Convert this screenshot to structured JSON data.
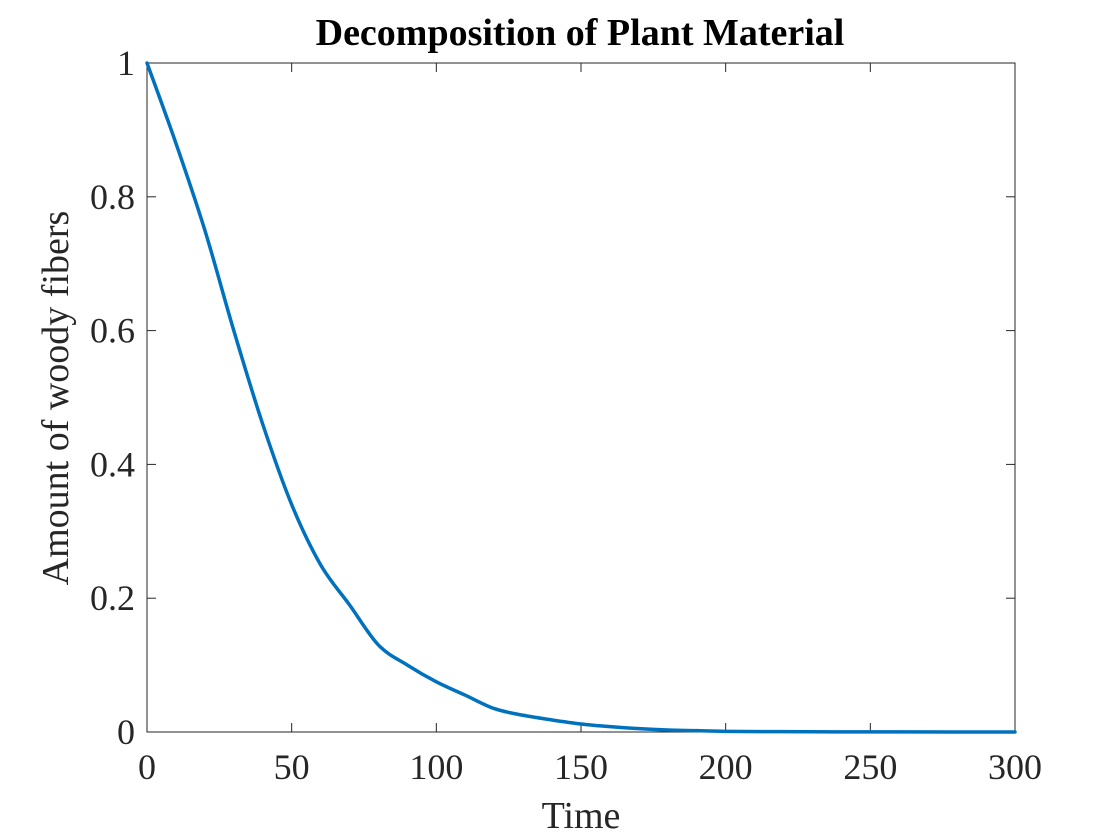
{
  "chart_data": {
    "type": "line",
    "title": "Decomposition of Plant Material",
    "xlabel": "Time",
    "ylabel": "Amount of woody fibers",
    "xlim": [
      0,
      300
    ],
    "ylim": [
      0,
      1
    ],
    "xticks": [
      0,
      50,
      100,
      150,
      200,
      250,
      300
    ],
    "yticks": [
      0,
      0.2,
      0.4,
      0.6,
      0.8,
      1
    ],
    "xtick_labels": [
      "0",
      "50",
      "100",
      "150",
      "200",
      "250",
      "300"
    ],
    "ytick_labels": [
      "0",
      "0.2",
      "0.4",
      "0.6",
      "0.8",
      "1"
    ],
    "grid": false,
    "series": [
      {
        "color": "#0072BD",
        "x": [
          0,
          10,
          20,
          30,
          40,
          50,
          60,
          70,
          80,
          90,
          100,
          110,
          120,
          130,
          140,
          150,
          160,
          170,
          180,
          190,
          200,
          220,
          240,
          260,
          280,
          300
        ],
        "y": [
          1.0,
          0.88,
          0.75,
          0.6,
          0.46,
          0.34,
          0.25,
          0.19,
          0.13,
          0.1,
          0.075,
          0.055,
          0.035,
          0.025,
          0.018,
          0.012,
          0.008,
          0.005,
          0.003,
          0.002,
          0.001,
          0.0005,
          0.0002,
          0.0001,
          0.0,
          0.0
        ]
      }
    ]
  }
}
